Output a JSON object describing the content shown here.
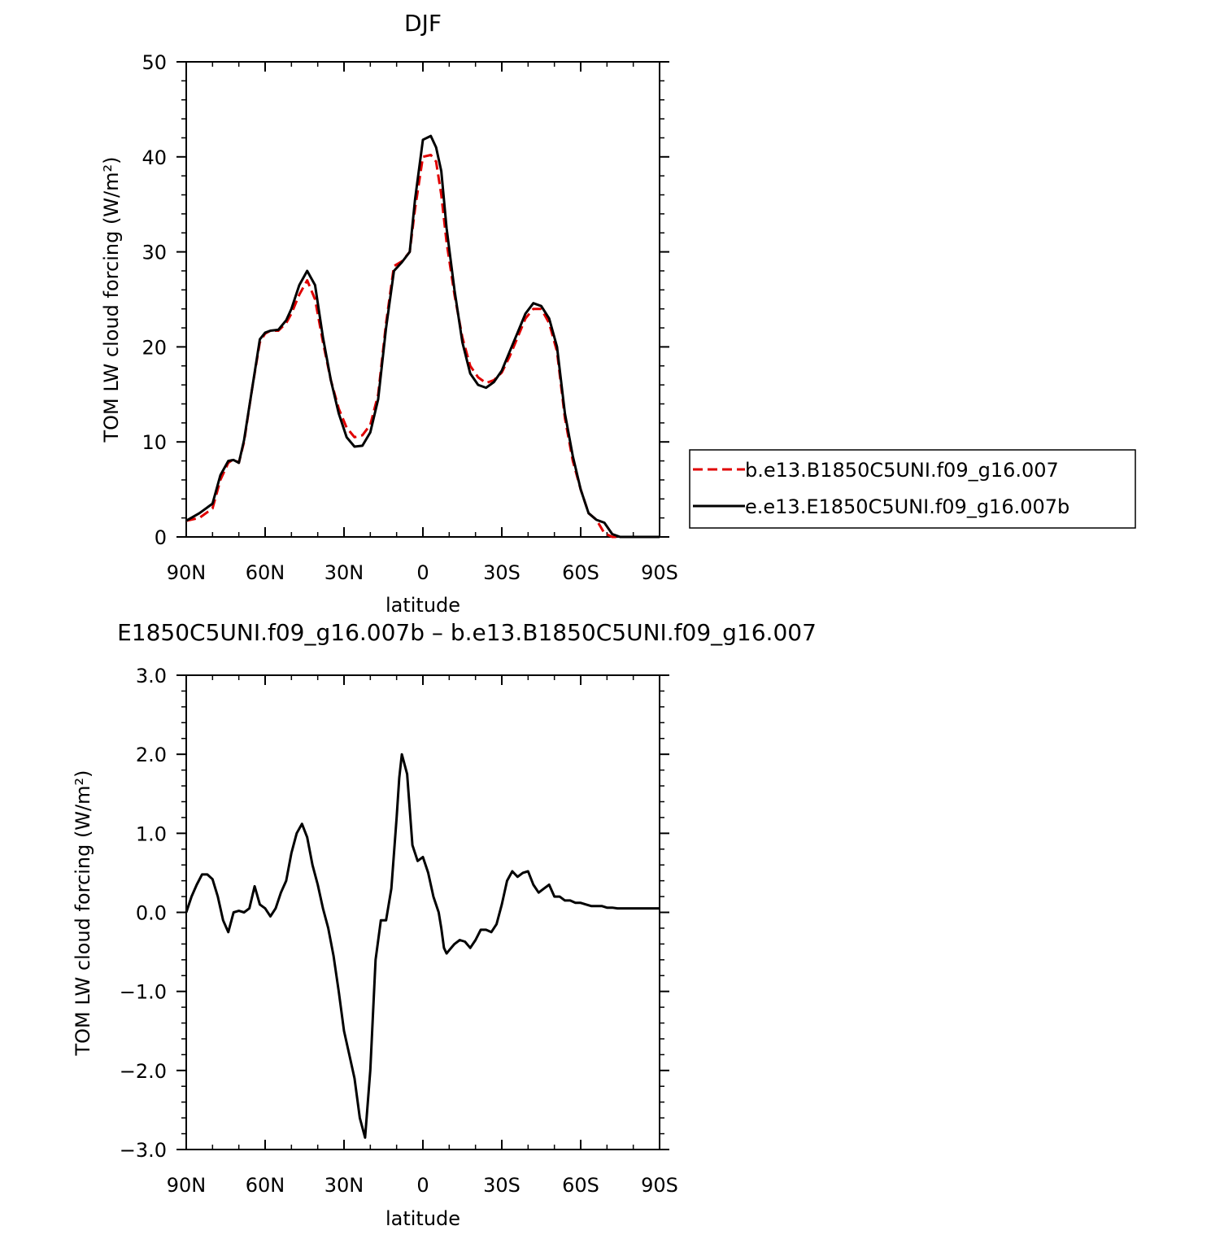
{
  "top_title": "DJF",
  "bottom_title": "E1850C5UNI.f09_g16.007b – b.e13.B1850C5UNI.f09_g16.007",
  "colors": {
    "series_b": "#e00000",
    "series_e": "#000000",
    "axis": "#000000"
  },
  "legend": {
    "items": [
      {
        "label": "b.e13.B1850C5UNI.f09_g16.007",
        "color": "#e00000",
        "style": "dashed"
      },
      {
        "label": "e.e13.E1850C5UNI.f09_g16.007b",
        "color": "#000000",
        "style": "solid"
      }
    ]
  },
  "chart_data": [
    {
      "type": "line",
      "title": "DJF",
      "xlabel": "latitude",
      "ylabel": "TOM LW cloud forcing (W/m²)",
      "xlim": [
        90,
        -90
      ],
      "ylim": [
        0,
        50
      ],
      "xticks": [
        90,
        60,
        30,
        0,
        -30,
        -60,
        -90
      ],
      "xtick_labels": [
        "90N",
        "60N",
        "30N",
        "0",
        "30S",
        "60S",
        "90S"
      ],
      "yticks": [
        0,
        10,
        20,
        30,
        40,
        50
      ],
      "ytick_labels": [
        "0",
        "10",
        "20",
        "30",
        "40",
        "50"
      ],
      "legend_position": "right",
      "series": [
        {
          "name": "b.e13.B1850C5UNI.f09_g16.007",
          "color": "#e00000",
          "style": "dashed",
          "x": [
            90,
            85,
            80,
            77,
            74,
            72,
            70,
            68,
            65,
            62,
            60,
            58,
            55,
            52,
            50,
            47,
            44,
            41,
            38,
            35,
            32,
            29,
            26,
            23,
            20,
            17,
            14,
            11,
            8,
            5,
            3,
            0,
            -3,
            -5,
            -7,
            -9,
            -12,
            -15,
            -18,
            -21,
            -24,
            -27,
            -30,
            -33,
            -36,
            -39,
            -42,
            -45,
            -48,
            -51,
            -54,
            -57,
            -60,
            -63,
            -66,
            -69,
            -72,
            -75,
            -78,
            -81,
            -84,
            -87,
            -90
          ],
          "y": [
            1.7,
            2.0,
            3.0,
            6.0,
            7.8,
            8.2,
            7.8,
            10.0,
            15.5,
            20.5,
            21.4,
            21.7,
            21.7,
            22.5,
            23.5,
            25.5,
            27.0,
            25.0,
            20.5,
            16.5,
            13.5,
            11.5,
            10.5,
            10.7,
            11.8,
            15.0,
            22.5,
            28.5,
            29.0,
            30.0,
            34.5,
            40.0,
            40.2,
            39.5,
            36.0,
            31.0,
            25.5,
            21.0,
            18.0,
            16.8,
            16.2,
            16.5,
            17.3,
            19.0,
            21.0,
            23.0,
            24.0,
            24.0,
            22.5,
            19.5,
            12.5,
            8.0,
            5.0,
            2.5,
            1.8,
            0.4,
            0.0,
            0.0,
            0.0,
            0.0,
            0.0,
            0.0,
            0.0
          ]
        },
        {
          "name": "e.e13.E1850C5UNI.f09_g16.007b",
          "color": "#000000",
          "style": "solid",
          "x": [
            90,
            85,
            80,
            77,
            74,
            72,
            70,
            68,
            65,
            62,
            60,
            58,
            55,
            52,
            50,
            47,
            44,
            41,
            38,
            35,
            32,
            29,
            26,
            23,
            20,
            17,
            14,
            11,
            8,
            5,
            3,
            0,
            -3,
            -5,
            -7,
            -9,
            -12,
            -15,
            -18,
            -21,
            -24,
            -27,
            -30,
            -33,
            -36,
            -39,
            -42,
            -45,
            -48,
            -51,
            -54,
            -57,
            -60,
            -63,
            -66,
            -69,
            -72,
            -75,
            -78,
            -81,
            -84,
            -87,
            -90
          ],
          "y": [
            1.7,
            2.5,
            3.5,
            6.5,
            8.0,
            8.1,
            7.8,
            10.2,
            15.5,
            20.8,
            21.5,
            21.7,
            21.8,
            22.8,
            24.0,
            26.5,
            28.0,
            26.5,
            21.0,
            16.5,
            13.0,
            10.5,
            9.5,
            9.6,
            11.0,
            14.5,
            22.0,
            28.0,
            28.9,
            30.0,
            35.5,
            41.8,
            42.2,
            41.0,
            38.5,
            32.5,
            26.0,
            20.5,
            17.2,
            16.0,
            15.7,
            16.3,
            17.5,
            19.5,
            21.5,
            23.5,
            24.6,
            24.3,
            23.0,
            20.0,
            13.0,
            8.5,
            5.0,
            2.5,
            1.8,
            1.5,
            0.3,
            0.0,
            0.0,
            0.0,
            0.0,
            0.0,
            0.0
          ]
        }
      ]
    },
    {
      "type": "line",
      "title": "E1850C5UNI.f09_g16.007b – b.e13.B1850C5UNI.f09_g16.007",
      "xlabel": "latitude",
      "ylabel": "TOM LW cloud forcing (W/m²)",
      "xlim": [
        90,
        -90
      ],
      "ylim": [
        -3.0,
        3.0
      ],
      "xticks": [
        90,
        60,
        30,
        0,
        -30,
        -60,
        -90
      ],
      "xtick_labels": [
        "90N",
        "60N",
        "30N",
        "0",
        "30S",
        "60S",
        "90S"
      ],
      "yticks": [
        -3.0,
        -2.0,
        -1.0,
        0.0,
        1.0,
        2.0,
        3.0
      ],
      "ytick_labels": [
        "−3.0",
        "−2.0",
        "−1.0",
        "0.0",
        "1.0",
        "2.0",
        "3.0"
      ],
      "series": [
        {
          "color": "#000000",
          "style": "solid",
          "x": [
            90,
            88,
            86,
            84,
            82,
            80,
            78,
            76,
            74,
            72,
            70,
            68,
            66,
            64,
            62,
            60,
            58,
            56,
            54,
            52,
            50,
            48,
            46,
            44,
            42,
            40,
            38,
            36,
            34,
            32,
            30,
            28,
            26,
            24,
            22,
            20,
            18,
            16,
            14,
            12,
            10,
            9,
            8,
            6,
            4,
            2,
            0,
            -2,
            -4,
            -6,
            -7,
            -8,
            -9,
            -10,
            -12,
            -14,
            -16,
            -18,
            -20,
            -22,
            -24,
            -26,
            -28,
            -30,
            -32,
            -34,
            -36,
            -38,
            -40,
            -42,
            -44,
            -46,
            -48,
            -50,
            -52,
            -54,
            -56,
            -58,
            -60,
            -62,
            -64,
            -66,
            -68,
            -70,
            -72,
            -74,
            -76,
            -78,
            -80,
            -82,
            -84,
            -86,
            -88,
            -90
          ],
          "y": [
            0.0,
            0.2,
            0.35,
            0.48,
            0.48,
            0.42,
            0.2,
            -0.1,
            -0.25,
            0.0,
            0.02,
            0.0,
            0.05,
            0.33,
            0.1,
            0.05,
            -0.05,
            0.05,
            0.25,
            0.4,
            0.75,
            1.0,
            1.12,
            0.95,
            0.6,
            0.35,
            0.05,
            -0.2,
            -0.55,
            -1.0,
            -1.5,
            -1.8,
            -2.1,
            -2.6,
            -2.85,
            -2.0,
            -0.6,
            -0.1,
            -0.1,
            0.3,
            1.2,
            1.7,
            2.0,
            1.75,
            0.85,
            0.65,
            0.7,
            0.5,
            0.2,
            0.0,
            -0.2,
            -0.45,
            -0.52,
            -0.48,
            -0.4,
            -0.35,
            -0.37,
            -0.45,
            -0.35,
            -0.22,
            -0.22,
            -0.25,
            -0.15,
            0.1,
            0.4,
            0.52,
            0.45,
            0.5,
            0.52,
            0.35,
            0.25,
            0.3,
            0.35,
            0.2,
            0.2,
            0.15,
            0.15,
            0.12,
            0.12,
            0.1,
            0.08,
            0.08,
            0.08,
            0.06,
            0.06,
            0.05,
            0.05,
            0.05,
            0.05,
            0.05,
            0.05,
            0.05,
            0.05,
            0.05
          ]
        }
      ]
    }
  ]
}
